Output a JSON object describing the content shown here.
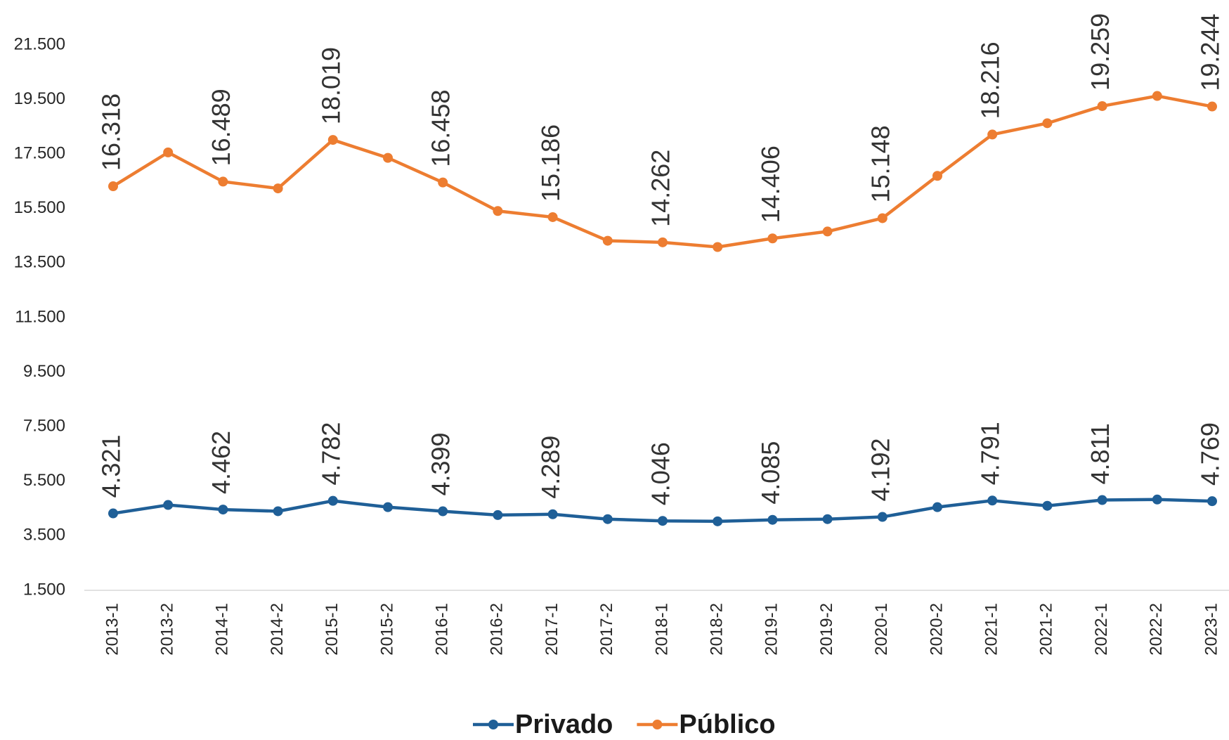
{
  "chart_data": {
    "type": "line",
    "categories": [
      "2013-1",
      "2013-2",
      "2014-1",
      "2014-2",
      "2015-1",
      "2015-2",
      "2016-1",
      "2016-2",
      "2017-1",
      "2017-2",
      "2018-1",
      "2018-2",
      "2019-1",
      "2019-2",
      "2020-1",
      "2020-2",
      "2021-1",
      "2021-2",
      "2022-1",
      "2022-2",
      "2023-1"
    ],
    "series": [
      {
        "name": "Privado",
        "color": "#1f5f97",
        "values": [
          4321,
          4630,
          4462,
          4400,
          4782,
          4550,
          4399,
          4260,
          4289,
          4110,
          4046,
          4030,
          4085,
          4110,
          4192,
          4550,
          4791,
          4600,
          4811,
          4830,
          4769
        ],
        "value_labels": [
          "4.321",
          null,
          "4.462",
          null,
          "4.782",
          null,
          "4.399",
          null,
          "4.289",
          null,
          "4.046",
          null,
          "4.085",
          null,
          "4.192",
          null,
          "4.791",
          null,
          "4.811",
          null,
          "4.769"
        ]
      },
      {
        "name": "Público",
        "color": "#ed7d31",
        "values": [
          16318,
          17560,
          16489,
          16240,
          18019,
          17360,
          16458,
          15410,
          15186,
          14320,
          14262,
          14090,
          14406,
          14660,
          15148,
          16700,
          18216,
          18630,
          19259,
          19630,
          19244
        ],
        "value_labels": [
          "16.318",
          null,
          "16.489",
          null,
          "18.019",
          null,
          "16.458",
          null,
          "15.186",
          null,
          "14.262",
          null,
          "14.406",
          null,
          "15.148",
          null,
          "18.216",
          null,
          "19.259",
          null,
          "19.244"
        ]
      }
    ],
    "ylim": [
      1500,
      21500
    ],
    "yticks": [
      {
        "value": 1500,
        "label": "1.500"
      },
      {
        "value": 3500,
        "label": "3.500"
      },
      {
        "value": 5500,
        "label": "5.500"
      },
      {
        "value": 7500,
        "label": "7.500"
      },
      {
        "value": 9500,
        "label": "9.500"
      },
      {
        "value": 11500,
        "label": "11.500"
      },
      {
        "value": 13500,
        "label": "13.500"
      },
      {
        "value": 15500,
        "label": "15.500"
      },
      {
        "value": 17500,
        "label": "17.500"
      },
      {
        "value": 19500,
        "label": "19.500"
      },
      {
        "value": 21500,
        "label": "21.500"
      }
    ],
    "grid": false,
    "legend": "bottom"
  }
}
